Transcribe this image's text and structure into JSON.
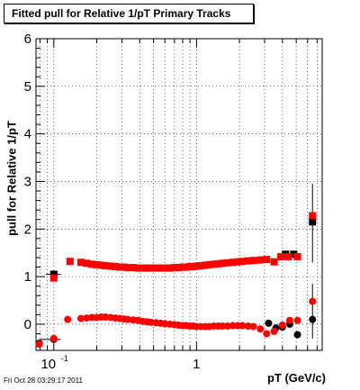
{
  "title": "Fitted pull for Relative 1/pT  Primary Tracks",
  "footer_timestamp": "Fri Oct 28 03:29:17 2011",
  "chart_data": {
    "type": "scatter",
    "xlabel": "pT (GeV/c)",
    "ylabel": "pull for Relative 1/pT",
    "xscale": "log",
    "xlim": [
      0.075,
      7.6
    ],
    "ylim": [
      -0.55,
      6.0
    ],
    "x_tick_labels": [
      {
        "value": 0.1,
        "base": "10",
        "exp": "-1"
      },
      {
        "value": 1,
        "base": "1",
        "exp": ""
      }
    ],
    "y_ticks": [
      0,
      1,
      2,
      3,
      4,
      5,
      6
    ],
    "grid": true,
    "series": [
      {
        "marker": "square",
        "values_black": [
          [
            0.1,
            1.05
          ],
          [
            6.5,
            2.15
          ],
          [
            4.2,
            1.47
          ],
          [
            4.8,
            1.47
          ]
        ],
        "values_red": [
          [
            0.1,
            0.97
          ],
          [
            0.13,
            1.32
          ],
          [
            0.155,
            1.3
          ],
          [
            0.17,
            1.28
          ],
          [
            0.185,
            1.26
          ],
          [
            0.2,
            1.25
          ],
          [
            0.215,
            1.24
          ],
          [
            0.23,
            1.23
          ],
          [
            0.25,
            1.22
          ],
          [
            0.27,
            1.21
          ],
          [
            0.29,
            1.2
          ],
          [
            0.31,
            1.2
          ],
          [
            0.33,
            1.19
          ],
          [
            0.36,
            1.19
          ],
          [
            0.39,
            1.18
          ],
          [
            0.42,
            1.18
          ],
          [
            0.45,
            1.18
          ],
          [
            0.48,
            1.18
          ],
          [
            0.52,
            1.18
          ],
          [
            0.56,
            1.18
          ],
          [
            0.6,
            1.18
          ],
          [
            0.65,
            1.18
          ],
          [
            0.7,
            1.19
          ],
          [
            0.75,
            1.19
          ],
          [
            0.8,
            1.2
          ],
          [
            0.85,
            1.2
          ],
          [
            0.9,
            1.21
          ],
          [
            0.95,
            1.21
          ],
          [
            1.0,
            1.22
          ],
          [
            1.07,
            1.23
          ],
          [
            1.15,
            1.24
          ],
          [
            1.23,
            1.25
          ],
          [
            1.32,
            1.26
          ],
          [
            1.42,
            1.27
          ],
          [
            1.52,
            1.28
          ],
          [
            1.65,
            1.29
          ],
          [
            1.8,
            1.3
          ],
          [
            1.95,
            1.31
          ],
          [
            2.1,
            1.32
          ],
          [
            2.3,
            1.33
          ],
          [
            2.5,
            1.34
          ],
          [
            2.8,
            1.35
          ],
          [
            3.1,
            1.36
          ],
          [
            3.5,
            1.31
          ],
          [
            3.9,
            1.42
          ],
          [
            4.4,
            1.42
          ],
          [
            5.1,
            1.42
          ],
          [
            6.5,
            2.28
          ]
        ]
      },
      {
        "marker": "circle",
        "values_black": [
          [
            0.079,
            -0.4
          ],
          [
            0.1,
            -0.32
          ],
          [
            6.5,
            0.1
          ],
          [
            4.0,
            -0.06
          ],
          [
            4.5,
            0.0
          ],
          [
            5.1,
            -0.22
          ],
          [
            3.6,
            -0.08
          ],
          [
            3.2,
            0.02
          ]
        ],
        "values_red": [
          [
            0.079,
            -0.42
          ],
          [
            0.1,
            -0.3
          ],
          [
            0.125,
            0.1
          ],
          [
            0.155,
            0.12
          ],
          [
            0.17,
            0.13
          ],
          [
            0.185,
            0.14
          ],
          [
            0.2,
            0.14
          ],
          [
            0.215,
            0.15
          ],
          [
            0.23,
            0.15
          ],
          [
            0.25,
            0.14
          ],
          [
            0.27,
            0.13
          ],
          [
            0.29,
            0.12
          ],
          [
            0.31,
            0.11
          ],
          [
            0.33,
            0.1
          ],
          [
            0.36,
            0.09
          ],
          [
            0.39,
            0.08
          ],
          [
            0.42,
            0.06
          ],
          [
            0.45,
            0.05
          ],
          [
            0.48,
            0.04
          ],
          [
            0.52,
            0.03
          ],
          [
            0.56,
            0.02
          ],
          [
            0.6,
            0.01
          ],
          [
            0.65,
            0.0
          ],
          [
            0.7,
            -0.01
          ],
          [
            0.75,
            -0.02
          ],
          [
            0.8,
            -0.03
          ],
          [
            0.85,
            -0.03
          ],
          [
            0.9,
            -0.04
          ],
          [
            0.95,
            -0.04
          ],
          [
            1.0,
            -0.05
          ],
          [
            1.07,
            -0.05
          ],
          [
            1.15,
            -0.05
          ],
          [
            1.23,
            -0.05
          ],
          [
            1.32,
            -0.04
          ],
          [
            1.42,
            -0.04
          ],
          [
            1.52,
            -0.04
          ],
          [
            1.65,
            -0.04
          ],
          [
            1.8,
            -0.03
          ],
          [
            1.95,
            -0.03
          ],
          [
            2.1,
            -0.03
          ],
          [
            2.3,
            -0.04
          ],
          [
            2.5,
            -0.05
          ],
          [
            2.8,
            -0.1
          ],
          [
            3.1,
            -0.2
          ],
          [
            3.5,
            -0.15
          ],
          [
            4.0,
            -0.02
          ],
          [
            4.5,
            0.08
          ],
          [
            5.1,
            0.08
          ],
          [
            6.5,
            0.48
          ]
        ]
      }
    ]
  },
  "colors": {
    "red": "#ff0000",
    "black": "#000000",
    "grid": "#000000"
  }
}
